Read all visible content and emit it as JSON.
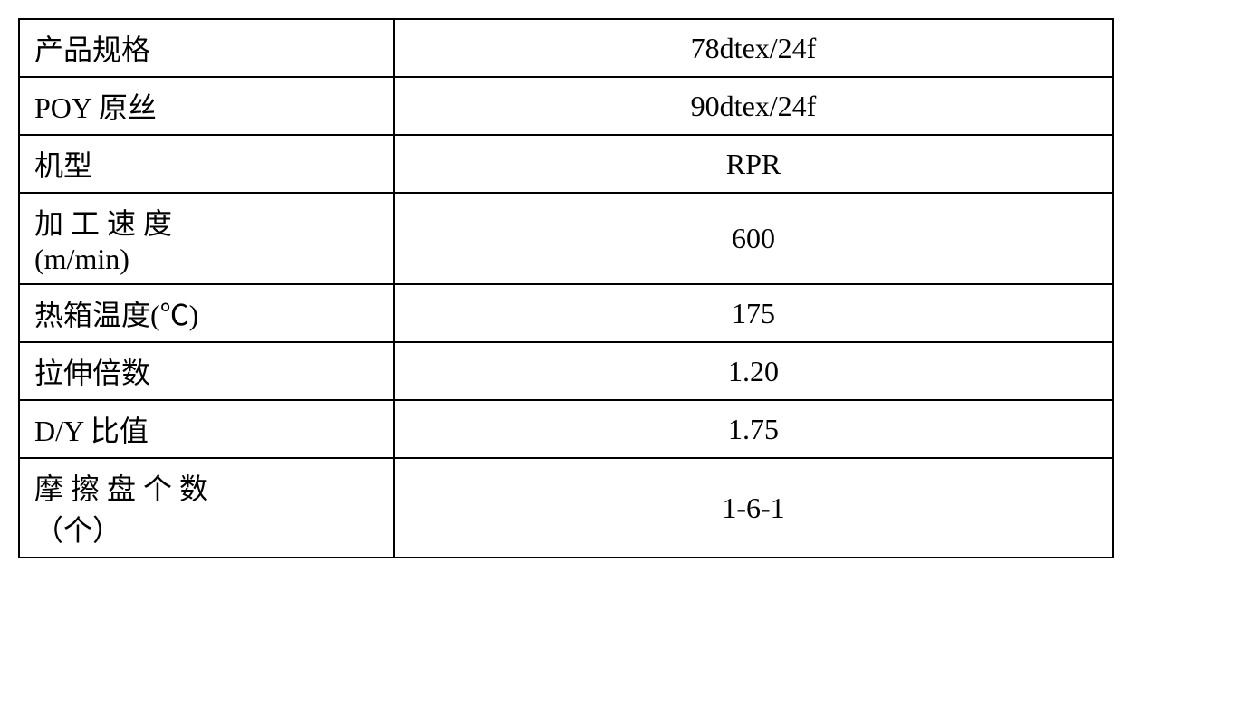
{
  "table": {
    "rows": [
      {
        "label": "产品规格",
        "value": "78dtex/24f",
        "justify": false,
        "wrap": false
      },
      {
        "label": "POY 原丝",
        "value": "90dtex/24f",
        "justify": false,
        "wrap": false
      },
      {
        "label": "机型",
        "value": "RPR",
        "justify": false,
        "wrap": false
      },
      {
        "label_line1": "加 工 速 度",
        "label_line2": "(m/min)",
        "value": "600",
        "justify": true,
        "wrap": true
      },
      {
        "label": "热箱温度(℃)",
        "value": "175",
        "justify": false,
        "wrap": false
      },
      {
        "label": "拉伸倍数",
        "value": "1.20",
        "justify": false,
        "wrap": false
      },
      {
        "label": "D/Y 比值",
        "value": "1.75",
        "justify": false,
        "wrap": false
      },
      {
        "label_line1": "摩 擦 盘 个 数",
        "label_line2": "（个）",
        "value": "1-6-1",
        "justify": true,
        "wrap": true
      }
    ],
    "border_color": "#000000",
    "background_color": "#ffffff",
    "text_color": "#000000",
    "font_size": 32,
    "label_col_width": 380,
    "value_col_width": 760
  }
}
